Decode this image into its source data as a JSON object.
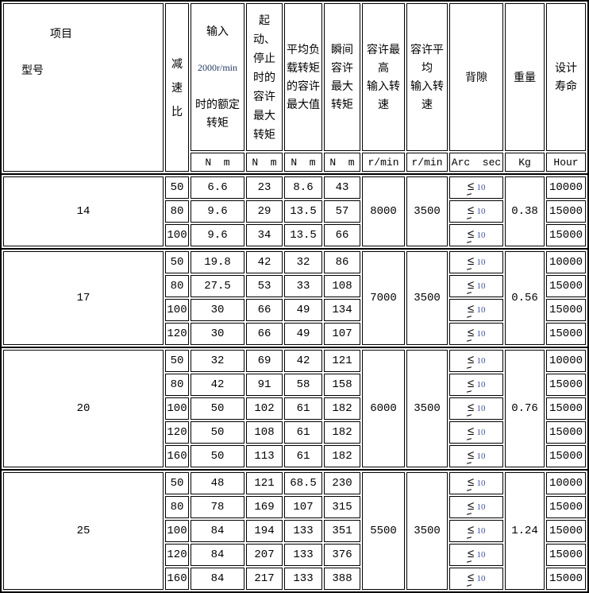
{
  "header": {
    "corner": {
      "top": "项目",
      "bottom": "型号"
    },
    "columns": [
      {
        "key": "ratio",
        "label": "减\n速\n比",
        "unit": ""
      },
      {
        "key": "rated",
        "label_top": "输入",
        "label_mid": "2000r/min",
        "label_bottom": "时的额定\n转矩",
        "unit": "N  m"
      },
      {
        "key": "start_stop",
        "label": "起\n动、\n停止\n时的\n容许\n最大\n转矩",
        "unit": "N  m"
      },
      {
        "key": "avg_load",
        "label": "平均负\n载转矩\n的容许\n最大值",
        "unit": "N  m"
      },
      {
        "key": "instant",
        "label": "瞬间\n容许\n最大\n转矩",
        "unit": "N  m"
      },
      {
        "key": "max_input_speed",
        "label": "容许最\n高\n输入转\n速",
        "unit": "r/min"
      },
      {
        "key": "avg_input_speed",
        "label": "容许平\n均\n输入转\n速",
        "unit": "r/min"
      },
      {
        "key": "backlash",
        "label": "背隙",
        "unit": "Arc  sec"
      },
      {
        "key": "weight",
        "label": "重量",
        "unit": "Kg"
      },
      {
        "key": "life",
        "label": "设计\n寿命",
        "unit": "Hour"
      }
    ]
  },
  "backlash": {
    "symbol": "≤",
    "value": "10"
  },
  "colors": {
    "accent_navy": "#253a65",
    "backlash_value_blue": "#3f51a3",
    "border": "#000000"
  },
  "groups": [
    {
      "model": "14",
      "max_input_speed": "8000",
      "avg_input_speed": "3500",
      "weight": "0.38",
      "rows": [
        {
          "ratio": "50",
          "rated": "6.6",
          "start_stop": "23",
          "avg_load": "8.6",
          "instant": "43",
          "life": "10000"
        },
        {
          "ratio": "80",
          "rated": "9.6",
          "start_stop": "29",
          "avg_load": "13.5",
          "instant": "57",
          "life": "15000"
        },
        {
          "ratio": "100",
          "rated": "9.6",
          "start_stop": "34",
          "avg_load": "13.5",
          "instant": "66",
          "life": "15000"
        }
      ]
    },
    {
      "model": "17",
      "max_input_speed": "7000",
      "avg_input_speed": "3500",
      "weight": "0.56",
      "rows": [
        {
          "ratio": "50",
          "rated": "19.8",
          "start_stop": "42",
          "avg_load": "32",
          "instant": "86",
          "life": "10000"
        },
        {
          "ratio": "80",
          "rated": "27.5",
          "start_stop": "53",
          "avg_load": "33",
          "instant": "108",
          "life": "15000"
        },
        {
          "ratio": "100",
          "rated": "30",
          "start_stop": "66",
          "avg_load": "49",
          "instant": "134",
          "life": "15000"
        },
        {
          "ratio": "120",
          "rated": "30",
          "start_stop": "66",
          "avg_load": "49",
          "instant": "107",
          "life": "15000"
        }
      ]
    },
    {
      "model": "20",
      "max_input_speed": "6000",
      "avg_input_speed": "3500",
      "weight": "0.76",
      "rows": [
        {
          "ratio": "50",
          "rated": "32",
          "start_stop": "69",
          "avg_load": "42",
          "instant": "121",
          "life": "10000"
        },
        {
          "ratio": "80",
          "rated": "42",
          "start_stop": "91",
          "avg_load": "58",
          "instant": "158",
          "life": "15000"
        },
        {
          "ratio": "100",
          "rated": "50",
          "start_stop": "102",
          "avg_load": "61",
          "instant": "182",
          "life": "15000"
        },
        {
          "ratio": "120",
          "rated": "50",
          "start_stop": "108",
          "avg_load": "61",
          "instant": "182",
          "life": "15000"
        },
        {
          "ratio": "160",
          "rated": "50",
          "start_stop": "113",
          "avg_load": "61",
          "instant": "182",
          "life": "15000"
        }
      ]
    },
    {
      "model": "25",
      "max_input_speed": "5500",
      "avg_input_speed": "3500",
      "weight": "1.24",
      "rows": [
        {
          "ratio": "50",
          "rated": "48",
          "start_stop": "121",
          "avg_load": "68.5",
          "instant": "230",
          "life": "10000"
        },
        {
          "ratio": "80",
          "rated": "78",
          "start_stop": "169",
          "avg_load": "107",
          "instant": "315",
          "life": "15000"
        },
        {
          "ratio": "100",
          "rated": "84",
          "start_stop": "194",
          "avg_load": "133",
          "instant": "351",
          "life": "15000"
        },
        {
          "ratio": "120",
          "rated": "84",
          "start_stop": "207",
          "avg_load": "133",
          "instant": "376",
          "life": "15000"
        },
        {
          "ratio": "160",
          "rated": "84",
          "start_stop": "217",
          "avg_load": "133",
          "instant": "388",
          "life": "15000"
        }
      ]
    }
  ]
}
